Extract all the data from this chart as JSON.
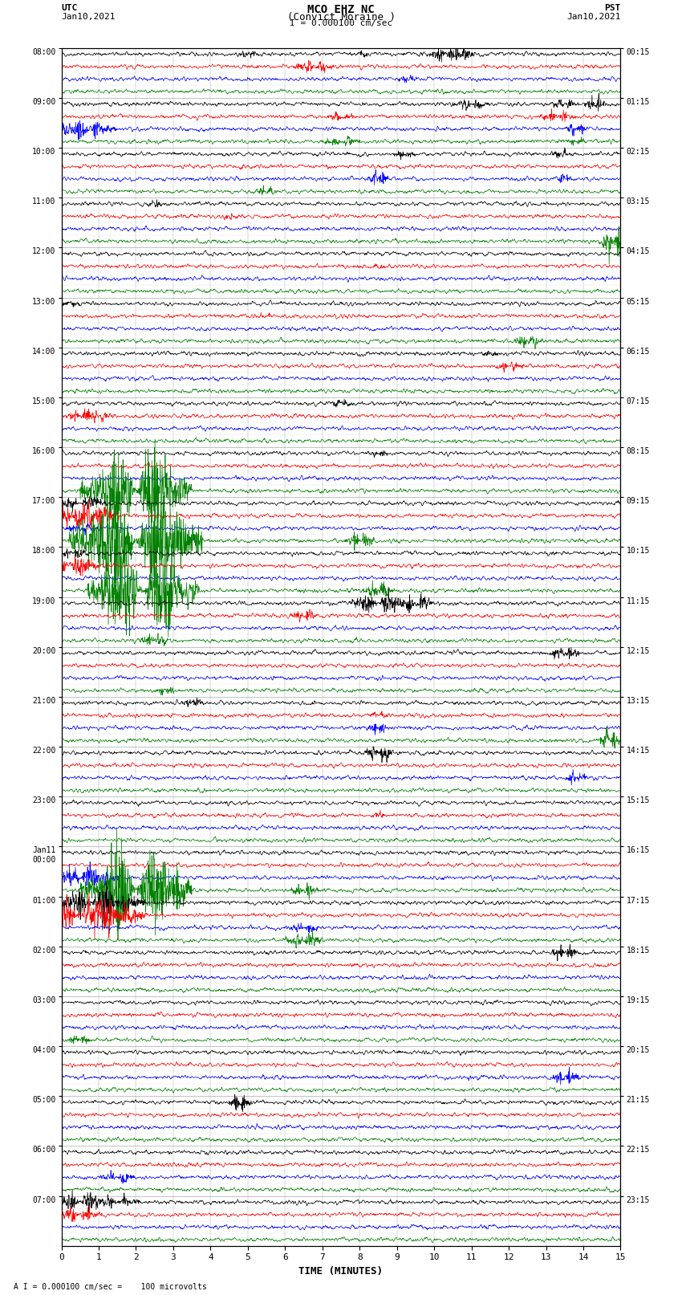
{
  "title_line1": "MCO EHZ NC",
  "title_line2": "(Convict Moraine )",
  "scale_text": "I = 0.000100 cm/sec",
  "footer_text": "A I = 0.000100 cm/sec =    100 microvolts",
  "utc_label": "UTC",
  "utc_date": "Jan10,2021",
  "pst_label": "PST",
  "pst_date": "Jan10,2021",
  "xlabel": "TIME (MINUTES)",
  "bg_color": "#ffffff",
  "trace_colors": [
    "black",
    "red",
    "blue",
    "green"
  ],
  "left_times": [
    "08:00",
    "",
    "",
    "",
    "09:00",
    "",
    "",
    "",
    "10:00",
    "",
    "",
    "",
    "11:00",
    "",
    "",
    "",
    "12:00",
    "",
    "",
    "",
    "13:00",
    "",
    "",
    "",
    "14:00",
    "",
    "",
    "",
    "15:00",
    "",
    "",
    "",
    "16:00",
    "",
    "",
    "",
    "17:00",
    "",
    "",
    "",
    "18:00",
    "",
    "",
    "",
    "19:00",
    "",
    "",
    "",
    "20:00",
    "",
    "",
    "",
    "21:00",
    "",
    "",
    "",
    "22:00",
    "",
    "",
    "",
    "23:00",
    "",
    "",
    "",
    "Jan11\n00:00",
    "",
    "",
    "",
    "01:00",
    "",
    "",
    "",
    "02:00",
    "",
    "",
    "",
    "03:00",
    "",
    "",
    "",
    "04:00",
    "",
    "",
    "",
    "05:00",
    "",
    "",
    "",
    "06:00",
    "",
    "",
    "",
    "07:00",
    "",
    "",
    ""
  ],
  "right_times": [
    "00:15",
    "",
    "",
    "",
    "01:15",
    "",
    "",
    "",
    "02:15",
    "",
    "",
    "",
    "03:15",
    "",
    "",
    "",
    "04:15",
    "",
    "",
    "",
    "05:15",
    "",
    "",
    "",
    "06:15",
    "",
    "",
    "",
    "07:15",
    "",
    "",
    "",
    "08:15",
    "",
    "",
    "",
    "09:15",
    "",
    "",
    "",
    "10:15",
    "",
    "",
    "",
    "11:15",
    "",
    "",
    "",
    "12:15",
    "",
    "",
    "",
    "13:15",
    "",
    "",
    "",
    "14:15",
    "",
    "",
    "",
    "15:15",
    "",
    "",
    "",
    "16:15",
    "",
    "",
    "",
    "17:15",
    "",
    "",
    "",
    "18:15",
    "",
    "",
    "",
    "19:15",
    "",
    "",
    "",
    "20:15",
    "",
    "",
    "",
    "21:15",
    "",
    "",
    "",
    "22:15",
    "",
    "",
    "",
    "23:15",
    "",
    "",
    ""
  ],
  "n_groups": 24,
  "n_traces_per_group": 4,
  "xmin": 0,
  "xmax": 15,
  "seed": 42,
  "n_points": 1800,
  "base_noise": 0.018,
  "grid_color": "#aaaaaa",
  "grid_lw": 0.3
}
